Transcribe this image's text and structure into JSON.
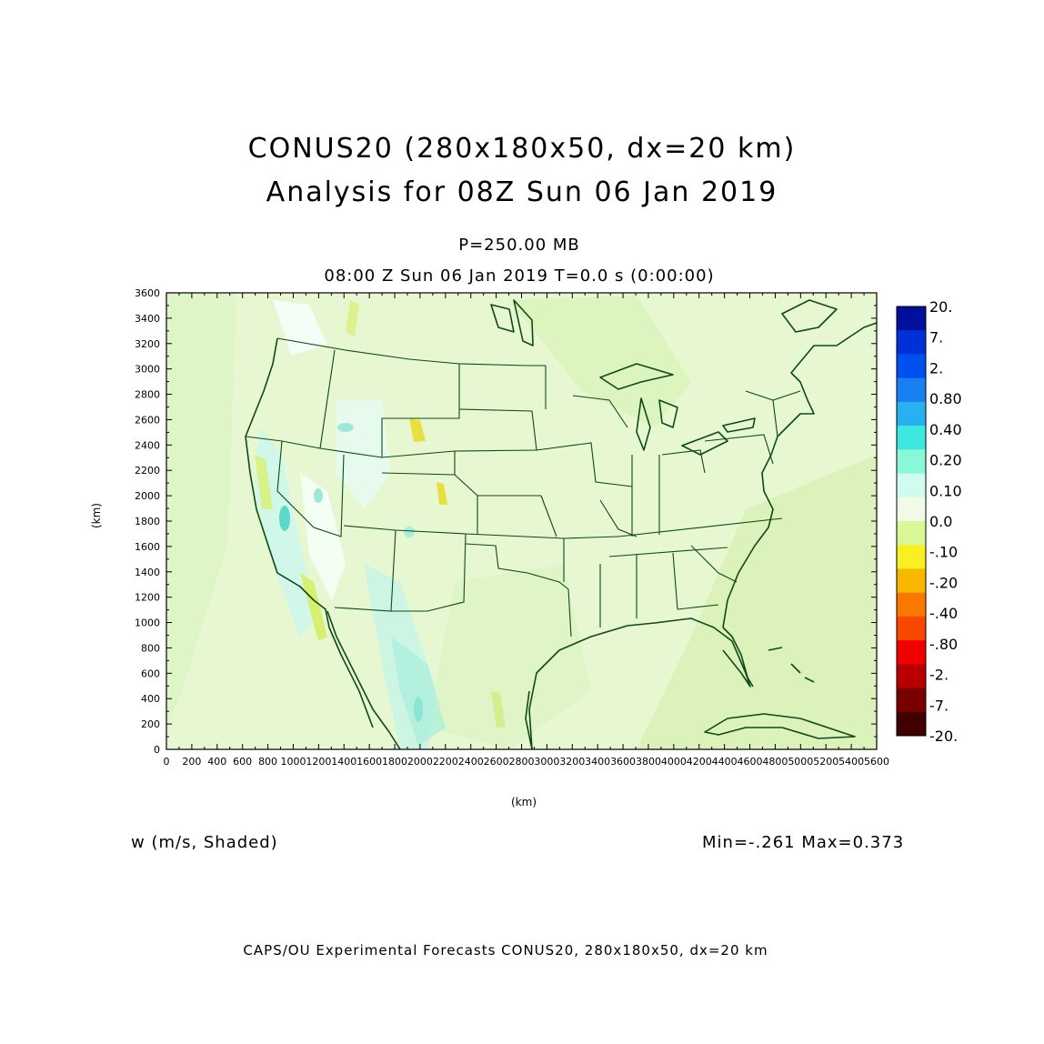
{
  "title": {
    "line1": "CONUS20 (280x180x50, dx=20 km)",
    "line2": "Analysis for 08Z Sun 06 Jan 2019"
  },
  "level_label": "P=250.00 MB",
  "time_label": "08:00 Z Sun 06 Jan 2019    T=0.0 s (0:00:00)",
  "axes": {
    "x_label": "(km)",
    "y_label": "(km)",
    "x_ticks": [
      "0",
      "200",
      "400",
      "600",
      "800",
      "1000",
      "1200",
      "1400",
      "1600",
      "1800",
      "2000",
      "2200",
      "2400",
      "2600",
      "2800",
      "3000",
      "3200",
      "3400",
      "3600",
      "3800",
      "4000",
      "4200",
      "4400",
      "4600",
      "4800",
      "5000",
      "5200",
      "5400",
      "5600"
    ],
    "y_ticks": [
      "0",
      "200",
      "400",
      "600",
      "800",
      "1000",
      "1200",
      "1400",
      "1600",
      "1800",
      "2000",
      "2200",
      "2400",
      "2600",
      "2800",
      "3000",
      "3200",
      "3400",
      "3600"
    ],
    "x_range": [
      0,
      5600
    ],
    "y_range": [
      0,
      3600
    ]
  },
  "variable_label": "w (m/s, Shaded)",
  "minmax_label": "Min=-.261  Max=0.373",
  "footer": "CAPS/OU Experimental Forecasts  CONUS20, 280x180x50, dx=20 km",
  "colorbar": {
    "labels": [
      "20.",
      "7.",
      "2.",
      "0.80",
      "0.40",
      "0.20",
      "0.10",
      "0.0",
      "-.10",
      "-.20",
      "-.40",
      "-.80",
      "-2.",
      "-7.",
      "-20."
    ],
    "colors": [
      "#00109c",
      "#0030d8",
      "#0050f0",
      "#1880f0",
      "#28b0f0",
      "#3ce8e0",
      "#88f8d8",
      "#d0fcf0",
      "#f0fce8",
      "#d8f898",
      "#f8f020",
      "#f8b800",
      "#f87800",
      "#f84800",
      "#f00000",
      "#b80000",
      "#780000",
      "#400000"
    ]
  },
  "map": {
    "background_color": "#e6f7d2",
    "border_color": "#0d4a17"
  }
}
